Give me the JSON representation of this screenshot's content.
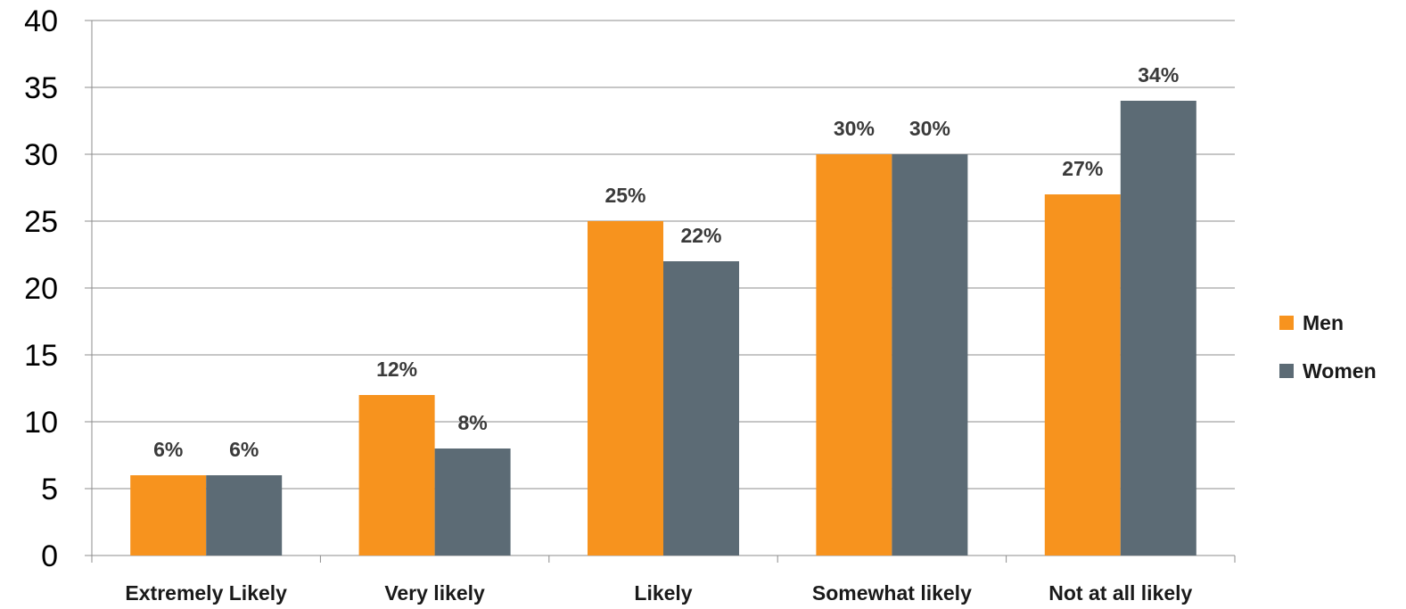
{
  "chart_data": {
    "type": "bar",
    "title": "",
    "xlabel": "",
    "ylabel": "",
    "ylim": [
      0,
      40
    ],
    "yticks": [
      0,
      5,
      10,
      15,
      20,
      25,
      30,
      35,
      40
    ],
    "grid": true,
    "legend_position": "right",
    "categories": [
      "Extremely Likely",
      "Very likely",
      "Likely",
      "Somewhat likely",
      "Not at all likely"
    ],
    "series": [
      {
        "name": "Men",
        "color": "#f7931e",
        "values": [
          6,
          12,
          25,
          30,
          27
        ],
        "labels": [
          "6%",
          "12%",
          "25%",
          "30%",
          "27%"
        ]
      },
      {
        "name": "Women",
        "color": "#5c6b75",
        "values": [
          6,
          8,
          22,
          30,
          34
        ],
        "labels": [
          "6%",
          "8%",
          "22%",
          "30%",
          "34%"
        ]
      }
    ]
  }
}
